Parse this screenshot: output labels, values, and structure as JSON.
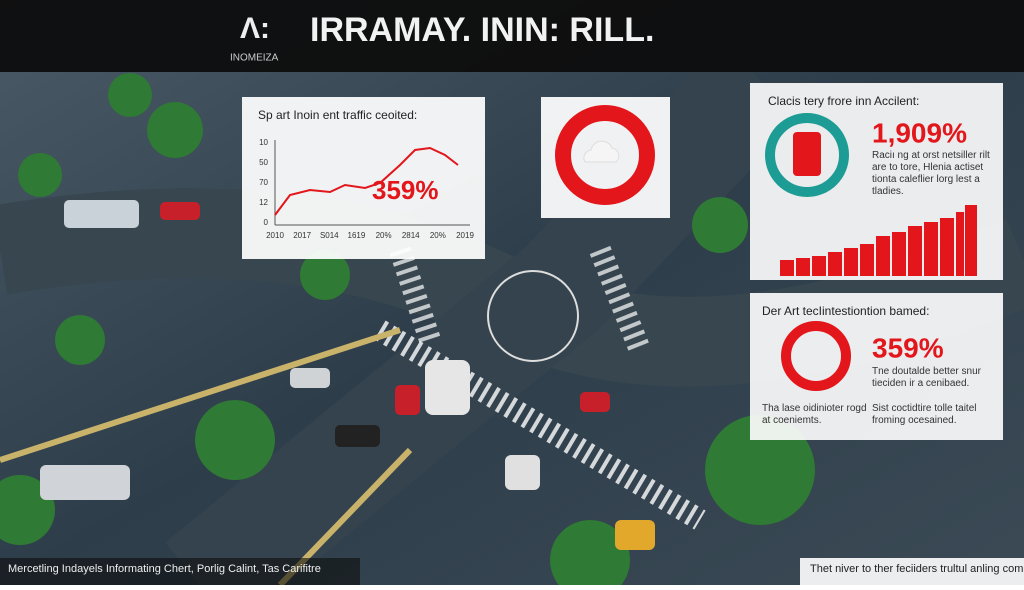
{
  "header": {
    "logo": "Λ:",
    "logo_sub": "INOMEIZA",
    "title": "IRRAMAY. ININ: RILL."
  },
  "panel_line": {
    "title": "Sp art Inoin ent traffic ceoited:",
    "y_labels": [
      "10",
      "50",
      "70",
      "12",
      "0"
    ],
    "x_labels": [
      "2010",
      "2017",
      "S014",
      "1619",
      "20%",
      "2814",
      "20%",
      "2019"
    ],
    "highlight": "359%"
  },
  "panel_accident": {
    "title": "Clacis tery frore inn Accilent:",
    "highlight": "1,909%",
    "text": "Raciı ng at orst netsiller rilt are to tore, Hlenia actiset tionta caleflier lorg lest a tladies."
  },
  "panel_tech": {
    "title": "Der Art tecIintestiontion bamed:",
    "highlight": "359%",
    "text": "Tne doutalde better snur tieciden ir a cenibaed.",
    "note_left": "Tha lase oidinioter rogd at coeniemts.",
    "note_right": "Sist coctidtire tolle taitel froming ocesained."
  },
  "footer": {
    "left": "Mercetling Indayels Informating Chert, Porlig Calint, Tas Carifitre",
    "right": "Thet niver to ther feciiders trultul anling comr."
  }
}
